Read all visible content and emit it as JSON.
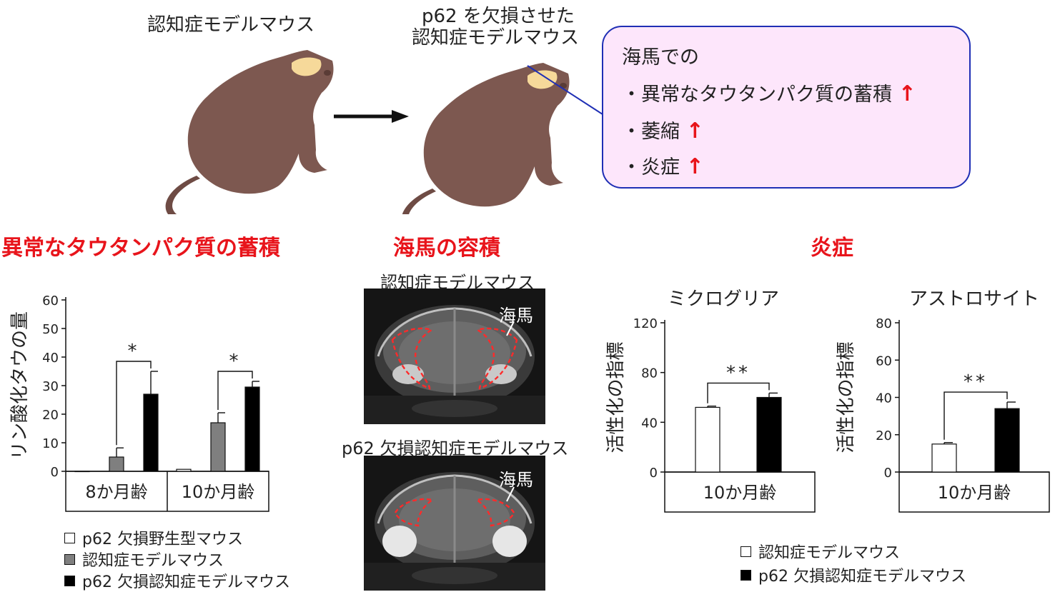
{
  "top": {
    "mouse_left_label": "認知症モデルマウス",
    "mouse_right_label_1": "p62 を欠損させた",
    "mouse_right_label_2": "認知症モデルマウス",
    "callout": {
      "heading": "海馬での",
      "items": [
        {
          "text": "・異常なタウタンパク質の蓄積",
          "arrow": "↑"
        },
        {
          "text": "・萎縮",
          "arrow": "↑"
        },
        {
          "text": "・炎症",
          "arrow": "↑"
        }
      ]
    },
    "colors": {
      "mouse_body": "#7d5850",
      "hippocampus": "#f6d99a",
      "callout_border": "#1f2fb5",
      "callout_fill": "#fde6fb",
      "accent": "#e8141b"
    }
  },
  "sections": {
    "tau": "異常なタウタンパク質の蓄積",
    "volume": "海馬の容積",
    "inflammation": "炎症"
  },
  "mri": {
    "top_title": "認知症モデルマウス",
    "bottom_title": "p62 欠損認知症モデルマウス",
    "hippocampus_label": "海馬"
  },
  "legend_tau": [
    {
      "name": "p62 欠損野生型マウス",
      "color": "#ffffff"
    },
    {
      "name": "認知症モデルマウス",
      "color": "#7f7f7f"
    },
    {
      "name": "p62 欠損認知症モデルマウス",
      "color": "#000000"
    }
  ],
  "legend_inflam": [
    {
      "name": "認知症モデルマウス",
      "color": "#ffffff"
    },
    {
      "name": "p62 欠損認知症モデルマウス",
      "color": "#000000"
    }
  ],
  "chart_data": [
    {
      "type": "bar",
      "title": "",
      "ylabel": "リン酸化タウの量",
      "ylim": [
        0,
        60
      ],
      "yticks": [
        0,
        10,
        20,
        30,
        40,
        50,
        60
      ],
      "categories": [
        "8か月齢",
        "10か月齢"
      ],
      "series": [
        {
          "name": "p62 欠損野生型マウス",
          "color": "#ffffff",
          "values": [
            0,
            0.7
          ],
          "errors": [
            0,
            0
          ]
        },
        {
          "name": "認知症モデルマウス",
          "color": "#7f7f7f",
          "values": [
            5,
            17
          ],
          "errors": [
            3.2,
            3.5
          ]
        },
        {
          "name": "p62 欠損認知症モデルマウス",
          "color": "#000000",
          "values": [
            27,
            29.5
          ],
          "errors": [
            8,
            2
          ]
        }
      ],
      "significance": [
        {
          "category": 0,
          "from": 1,
          "to": 2,
          "label": "*"
        },
        {
          "category": 1,
          "from": 1,
          "to": 2,
          "label": "*"
        }
      ],
      "grid": false
    },
    {
      "type": "bar",
      "title": "ミクログリア",
      "ylabel": "活性化の指標",
      "ylim": [
        0,
        120
      ],
      "yticks": [
        0,
        40,
        80,
        120
      ],
      "categories": [
        "10か月齢"
      ],
      "series": [
        {
          "name": "認知症モデルマウス",
          "color": "#ffffff",
          "values": [
            52
          ],
          "errors": [
            1
          ]
        },
        {
          "name": "p62 欠損認知症モデルマウス",
          "color": "#000000",
          "values": [
            60
          ],
          "errors": [
            3.5
          ]
        }
      ],
      "significance": [
        {
          "category": 0,
          "from": 0,
          "to": 1,
          "label": "**"
        }
      ],
      "grid": false
    },
    {
      "type": "bar",
      "title": "アストロサイト",
      "ylabel": "活性化の指標",
      "ylim": [
        0,
        80
      ],
      "yticks": [
        0,
        20,
        40,
        60,
        80
      ],
      "categories": [
        "10か月齢"
      ],
      "series": [
        {
          "name": "認知症モデルマウス",
          "color": "#ffffff",
          "values": [
            15
          ],
          "errors": [
            0.8
          ]
        },
        {
          "name": "p62 欠損認知症モデルマウス",
          "color": "#000000",
          "values": [
            34
          ],
          "errors": [
            3.5
          ]
        }
      ],
      "significance": [
        {
          "category": 0,
          "from": 0,
          "to": 1,
          "label": "**"
        }
      ],
      "grid": false
    }
  ]
}
